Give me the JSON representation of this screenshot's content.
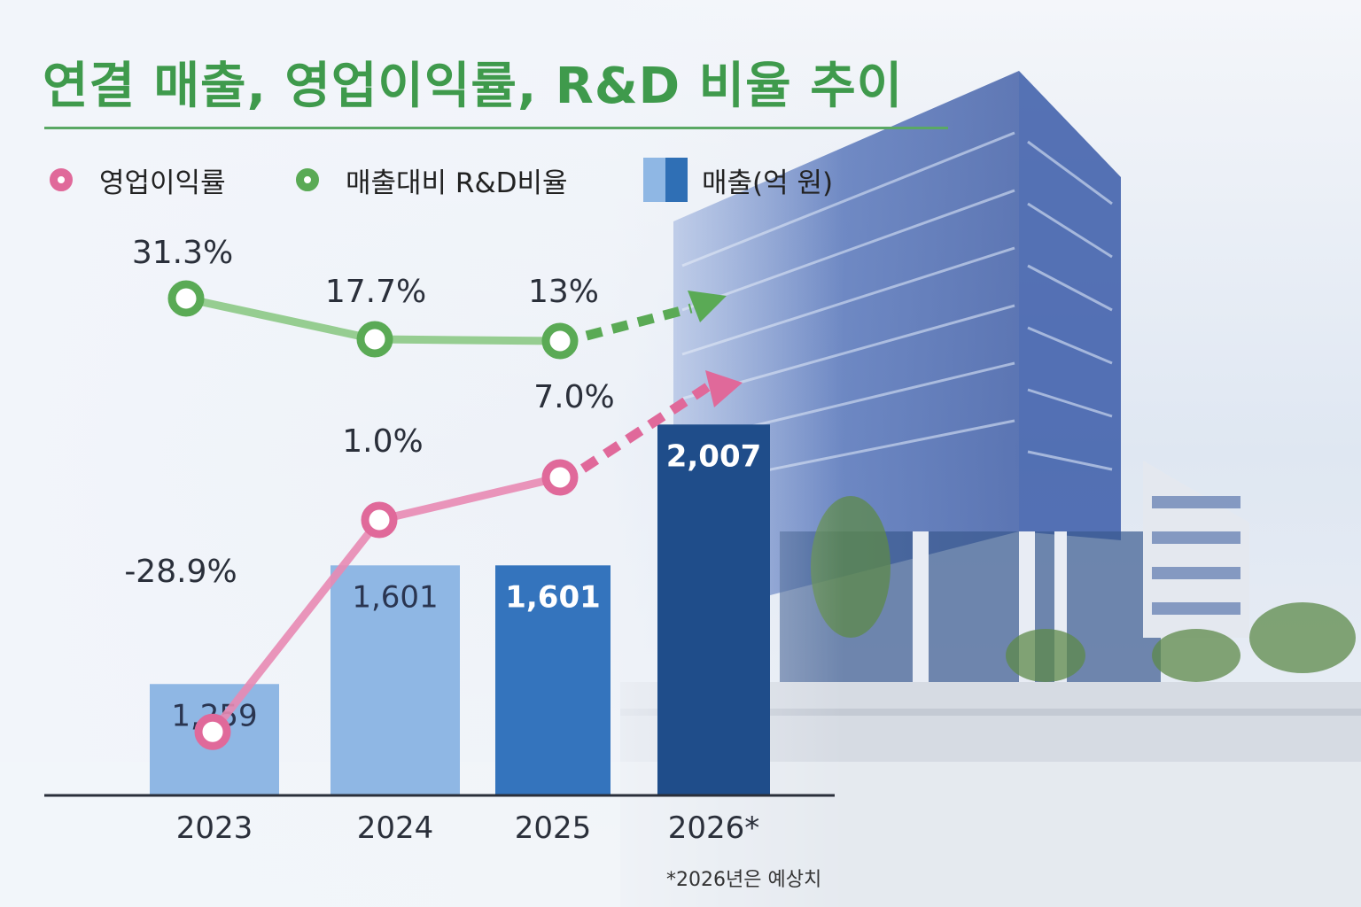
{
  "title": "연결 매출, 영업이익률, R&D 비율 추이",
  "legend": {
    "operating_margin": "영업이익률",
    "rnd_ratio": "매출대비 R&D비율",
    "revenue": "매출(억 원)"
  },
  "footnote": "*2026년은 예상치",
  "colors": {
    "title_green": "#3f9a4c",
    "margin_pink": "#e0699a",
    "rnd_green": "#5aaa55",
    "bar_light": "#8fb7e4",
    "bar_mid": "#3474bd",
    "bar_dark": "#1f4d8a"
  },
  "chart_data": {
    "type": "bar",
    "categories": [
      "2023",
      "2024",
      "2025",
      "2026*"
    ],
    "series": [
      {
        "name": "매출(억 원)",
        "kind": "bar",
        "values": [
          1259,
          1601,
          1601,
          2007
        ],
        "labels": [
          "1,259",
          "1,601",
          "1,601",
          "2,007"
        ]
      },
      {
        "name": "영업이익률",
        "kind": "line",
        "values": [
          -28.9,
          1.0,
          7.0,
          null
        ],
        "labels": [
          "-28.9%",
          "1.0%",
          "7.0%",
          ""
        ],
        "trend_arrow_after": "2025"
      },
      {
        "name": "매출대비 R&D비율",
        "kind": "line",
        "values": [
          31.3,
          17.7,
          13,
          null
        ],
        "labels": [
          "31.3%",
          "17.7%",
          "13%",
          ""
        ],
        "trend_arrow_after": "2025"
      }
    ],
    "xlabel": "",
    "ylabel": "",
    "legend_position": "top-left",
    "grid": false
  }
}
